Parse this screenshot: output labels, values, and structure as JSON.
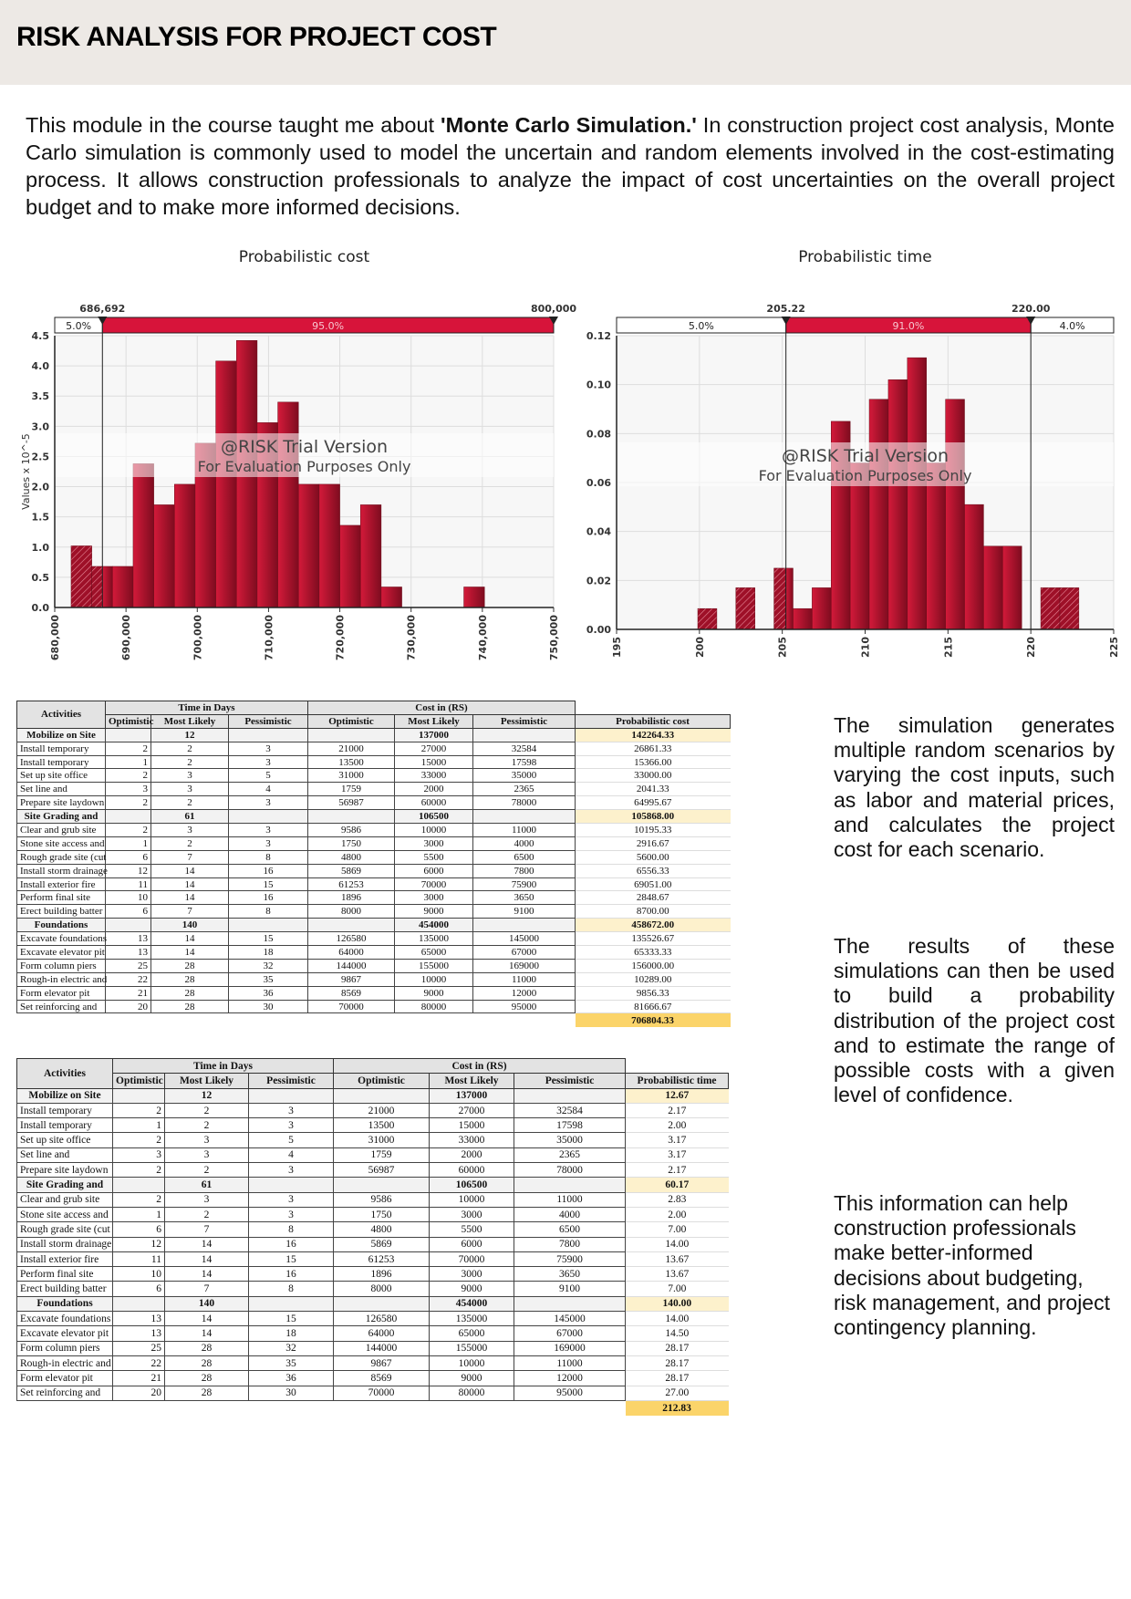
{
  "header": {
    "title": "RISK ANALYSIS FOR PROJECT COST"
  },
  "intro": {
    "before": "This module in the course taught me about ",
    "bold": "'Monte Carlo Simulation.'",
    "after": " In construction project cost analysis, Monte Carlo simulation is commonly used to model the uncertain and random elements involved in the cost-estimating process. It allows construction professionals to analyze the impact of cost uncertainties on the overall project budget and to make more informed decisions."
  },
  "chart_data": [
    {
      "type": "bar",
      "title": "Probabilistic cost",
      "ylabel": "Values x 10^-5",
      "xlabel": "",
      "xlim": [
        680000,
        750000
      ],
      "ylim": [
        0,
        4.5
      ],
      "xticks": [
        "680,000",
        "690,000",
        "700,000",
        "710,000",
        "720,000",
        "730,000",
        "740,000",
        "750,000"
      ],
      "yticks": [
        "0.0",
        "0.5",
        "1.0",
        "1.5",
        "2.0",
        "2.5",
        "3.0",
        "3.5",
        "4.0",
        "4.5"
      ],
      "bin_start": 682300,
      "bin_width": 2900,
      "values": [
        1.02,
        0.68,
        0.68,
        2.38,
        1.7,
        2.04,
        2.72,
        4.08,
        4.42,
        3.06,
        3.4,
        2.04,
        2.04,
        1.36,
        1.7,
        0.34,
        0,
        0,
        0,
        0.34
      ],
      "markers": {
        "low": 686692,
        "high": 800000,
        "low_label": "686,692",
        "high_label": "800,000"
      },
      "band": [
        {
          "label": "5.0%"
        },
        {
          "label": "95.0%"
        }
      ],
      "watermark": [
        "@RISK Trial Version",
        "For Evaluation Purposes Only"
      ],
      "grid": true
    },
    {
      "type": "bar",
      "title": "Probabilistic time",
      "ylabel": "",
      "xlabel": "",
      "xlim": [
        195,
        225
      ],
      "ylim": [
        0,
        0.12
      ],
      "xticks": [
        "195",
        "200",
        "205",
        "210",
        "215",
        "220",
        "225"
      ],
      "yticks": [
        "0.00",
        "0.02",
        "0.04",
        "0.06",
        "0.08",
        "0.10",
        "0.12"
      ],
      "bin_start": 199.9,
      "bin_width": 1.15,
      "values": [
        0.0085,
        0,
        0.017,
        0,
        0.025,
        0.0085,
        0.017,
        0.085,
        0.068,
        0.094,
        0.102,
        0.111,
        0.068,
        0.094,
        0.051,
        0.034,
        0.034,
        0,
        0.017,
        0.017
      ],
      "markers": {
        "low": 205.22,
        "high": 220.0,
        "low_label": "205.22",
        "high_label": "220.00"
      },
      "band": [
        {
          "label": "5.0%"
        },
        {
          "label": "91.0%"
        },
        {
          "label": "4.0%"
        }
      ],
      "watermark": [
        "@RISK Trial Version",
        "For Evaluation Purposes Only"
      ],
      "grid": true
    }
  ],
  "tables": {
    "headers": {
      "activities": "Activities",
      "time": "Time in Days",
      "cost": "Cost in (RS)",
      "optimistic": "Optimistic",
      "most_likely": "Most Likely",
      "pessimistic": "Pessimistic",
      "prob_cost": "Probabilistic cost",
      "prob_time": "Probabilistic time"
    },
    "rows": [
      {
        "group": true,
        "activity": "Mobilize on Site",
        "t": [
          "",
          "12",
          ""
        ],
        "c": [
          "",
          "137000",
          ""
        ],
        "prob_cost": "142264.33",
        "prob_time": "12.67"
      },
      {
        "activity": "Install temporary",
        "t": [
          "2",
          "2",
          "3"
        ],
        "c": [
          "21000",
          "27000",
          "32584"
        ],
        "prob_cost": "26861.33",
        "prob_time": "2.17"
      },
      {
        "activity": "Install temporary",
        "t": [
          "1",
          "2",
          "3"
        ],
        "c": [
          "13500",
          "15000",
          "17598"
        ],
        "prob_cost": "15366.00",
        "prob_time": "2.00"
      },
      {
        "activity": "Set up site office",
        "t": [
          "2",
          "3",
          "5"
        ],
        "c": [
          "31000",
          "33000",
          "35000"
        ],
        "prob_cost": "33000.00",
        "prob_time": "3.17"
      },
      {
        "activity": "Set line and",
        "t": [
          "3",
          "3",
          "4"
        ],
        "c": [
          "1759",
          "2000",
          "2365"
        ],
        "prob_cost": "2041.33",
        "prob_time": "3.17"
      },
      {
        "activity": "Prepare site  laydown",
        "t": [
          "2",
          "2",
          "3"
        ],
        "c": [
          "56987",
          "60000",
          "78000"
        ],
        "prob_cost": "64995.67",
        "prob_time": "2.17"
      },
      {
        "group": true,
        "activity": "Site Grading and",
        "t": [
          "",
          "61",
          ""
        ],
        "c": [
          "",
          "106500",
          ""
        ],
        "prob_cost": "105868.00",
        "prob_time": "60.17"
      },
      {
        "activity": "Clear and grub site",
        "t": [
          "2",
          "3",
          "3"
        ],
        "c": [
          "9586",
          "10000",
          "11000"
        ],
        "prob_cost": "10195.33",
        "prob_time": "2.83"
      },
      {
        "activity": "Stone site access and",
        "t": [
          "1",
          "2",
          "3"
        ],
        "c": [
          "1750",
          "3000",
          "4000"
        ],
        "prob_cost": "2916.67",
        "prob_time": "2.00"
      },
      {
        "activity": "Rough grade site (cut",
        "t": [
          "6",
          "7",
          "8"
        ],
        "c": [
          "4800",
          "5500",
          "6500"
        ],
        "prob_cost": "5600.00",
        "prob_time": "7.00"
      },
      {
        "activity": "Install storm drainage",
        "t": [
          "12",
          "14",
          "16"
        ],
        "c": [
          "5869",
          "6000",
          "7800"
        ],
        "prob_cost": "6556.33",
        "prob_time": "14.00"
      },
      {
        "activity": "Install exterior fire",
        "t": [
          "11",
          "14",
          "15"
        ],
        "c": [
          "61253",
          "70000",
          "75900"
        ],
        "prob_cost": "69051.00",
        "prob_time": "13.67"
      },
      {
        "activity": "Perform final site",
        "t": [
          "10",
          "14",
          "16"
        ],
        "c": [
          "1896",
          "3000",
          "3650"
        ],
        "prob_cost": "2848.67",
        "prob_time": "13.67"
      },
      {
        "activity": "Erect building batter",
        "t": [
          "6",
          "7",
          "8"
        ],
        "c": [
          "8000",
          "9000",
          "9100"
        ],
        "prob_cost": "8700.00",
        "prob_time": "7.00"
      },
      {
        "group": true,
        "activity": "Foundations",
        "t": [
          "",
          "140",
          ""
        ],
        "c": [
          "",
          "454000",
          ""
        ],
        "prob_cost": "458672.00",
        "prob_time": "140.00"
      },
      {
        "activity": "Excavate foundations",
        "t": [
          "13",
          "14",
          "15"
        ],
        "c": [
          "126580",
          "135000",
          "145000"
        ],
        "prob_cost": "135526.67",
        "prob_time": "14.00"
      },
      {
        "activity": "Excavate elevator pit",
        "t": [
          "13",
          "14",
          "18"
        ],
        "c": [
          "64000",
          "65000",
          "67000"
        ],
        "prob_cost": "65333.33",
        "prob_time": "14.50"
      },
      {
        "activity": "Form column piers",
        "t": [
          "25",
          "28",
          "32"
        ],
        "c": [
          "144000",
          "155000",
          "169000"
        ],
        "prob_cost": "156000.00",
        "prob_time": "28.17"
      },
      {
        "activity": "Rough-in electric and",
        "t": [
          "22",
          "28",
          "35"
        ],
        "c": [
          "9867",
          "10000",
          "11000"
        ],
        "prob_cost": "10289.00",
        "prob_time": "28.17"
      },
      {
        "activity": "Form elevator pit",
        "t": [
          "21",
          "28",
          "36"
        ],
        "c": [
          "8569",
          "9000",
          "12000"
        ],
        "prob_cost": "9856.33",
        "prob_time": "28.17"
      },
      {
        "activity": "Set reinforcing and",
        "t": [
          "20",
          "28",
          "30"
        ],
        "c": [
          "70000",
          "80000",
          "95000"
        ],
        "prob_cost": "81666.67",
        "prob_time": "27.00"
      }
    ],
    "totals": {
      "prob_cost": "706804.33",
      "prob_time": "212.83"
    }
  },
  "side_text": [
    "The simulation generates multiple random scenarios by varying the cost inputs, such as labor and material prices, and calculates the project cost for each scenario.",
    "The results of these simulations can then be used to build a probability distribution of the project cost and to estimate the range of possible costs with a given level of confidence.",
    "This information can help construction professionals make better-informed decisions about budgeting, risk management, and project contingency planning."
  ],
  "colors": {
    "bar": "#b5122e",
    "bar_dark": "#7e0c1f",
    "band": "#d7143a",
    "header_bg": "#ede9e5",
    "highlight": "#fbd46a",
    "subhighlight": "#fdf1cc"
  }
}
